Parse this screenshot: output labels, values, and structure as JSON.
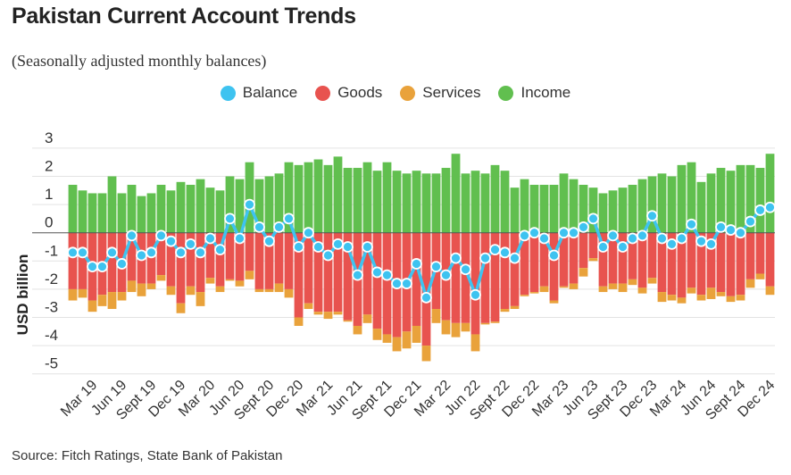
{
  "chart_data": {
    "type": "bar",
    "stacked": true,
    "title": "Pakistan Current Account Trends",
    "subtitle": "(Seasonally adjusted monthly balances)",
    "ylabel": "USD billion",
    "xlabel": "",
    "ylim": [
      -5,
      3
    ],
    "y_ticks": [
      "3",
      "2",
      "1",
      "0",
      "-1",
      "-2",
      "-3",
      "-4",
      "-5"
    ],
    "x_tick_labels": [
      "Mar 19",
      "Jun 19",
      "Sept 19",
      "Dec 19",
      "Mar 20",
      "Jun 20",
      "Sept 20",
      "Dec 20",
      "Mar 21",
      "Jun 21",
      "Sept 21",
      "Dec 21",
      "Mar 22",
      "Jun 22",
      "Sept 22",
      "Dec 22",
      "Mar 23",
      "Jun 23",
      "Sept 23",
      "Dec 23",
      "Mar 24",
      "Jun 24",
      "Sept 24",
      "Dec 24"
    ],
    "grid": true,
    "legend_placement": "top-center",
    "series": [
      {
        "name": "Balance",
        "type": "line",
        "color": "#3ec3f0",
        "values": [
          -0.7,
          -0.7,
          -1.2,
          -1.2,
          -0.7,
          -1.1,
          -0.1,
          -0.8,
          -0.7,
          -0.1,
          -0.3,
          -0.7,
          -0.4,
          -0.7,
          -0.2,
          -0.6,
          0.5,
          -0.2,
          1.0,
          0.2,
          -0.3,
          0.2,
          0.5,
          -0.5,
          0.0,
          -0.5,
          -0.8,
          -0.4,
          -0.5,
          -1.5,
          -0.5,
          -1.4,
          -1.5,
          -1.8,
          -1.8,
          -1.1,
          -2.3,
          -1.2,
          -1.5,
          -0.9,
          -1.3,
          -2.2,
          -0.9,
          -0.6,
          -0.7,
          -0.9,
          -0.1,
          0.0,
          -0.2,
          -0.8,
          0.0,
          0.0,
          0.2,
          0.5,
          -0.5,
          -0.1,
          -0.5,
          -0.2,
          -0.1,
          0.6,
          -0.2,
          -0.4,
          -0.2,
          0.3,
          -0.3,
          -0.4,
          0.2,
          0.1,
          0.0,
          0.4,
          0.8,
          0.9
        ]
      },
      {
        "name": "Goods",
        "type": "bar",
        "color": "#e8534f",
        "values": [
          -2.0,
          -2.0,
          -2.4,
          -2.2,
          -2.1,
          -2.1,
          -1.7,
          -1.8,
          -1.8,
          -1.5,
          -1.9,
          -2.5,
          -1.9,
          -2.1,
          -1.6,
          -1.9,
          -1.65,
          -1.7,
          -1.35,
          -2.0,
          -2.0,
          -1.8,
          -2.0,
          -3.0,
          -2.5,
          -2.8,
          -2.8,
          -2.8,
          -3.1,
          -3.3,
          -2.9,
          -3.4,
          -3.6,
          -3.7,
          -3.5,
          -3.3,
          -4.0,
          -2.7,
          -3.1,
          -3.2,
          -3.2,
          -3.6,
          -3.2,
          -3.15,
          -2.7,
          -2.6,
          -2.2,
          -2.1,
          -1.9,
          -2.4,
          -1.9,
          -1.8,
          -1.25,
          -0.9,
          -1.9,
          -1.8,
          -1.8,
          -1.65,
          -1.95,
          -1.6,
          -2.1,
          -2.2,
          -2.3,
          -1.95,
          -2.2,
          -1.95,
          -2.1,
          -2.25,
          -2.2,
          -1.65,
          -1.45,
          -1.9
        ]
      },
      {
        "name": "Services",
        "type": "bar",
        "color": "#e9a23b",
        "values": [
          -0.4,
          -0.3,
          -0.4,
          -0.4,
          -0.6,
          -0.3,
          -0.4,
          -0.45,
          -0.2,
          -0.2,
          -0.3,
          -0.35,
          -0.3,
          -0.5,
          -0.2,
          -0.2,
          -0.05,
          -0.2,
          -0.3,
          -0.1,
          -0.1,
          -0.3,
          -0.3,
          -0.3,
          -0.2,
          -0.1,
          -0.25,
          -0.1,
          -0.05,
          -0.3,
          -0.3,
          -0.4,
          -0.3,
          -0.5,
          -0.6,
          -0.6,
          -0.55,
          -0.5,
          -0.5,
          -0.5,
          -0.3,
          -0.6,
          -0.05,
          -0.05,
          -0.1,
          -0.1,
          -0.05,
          -0.05,
          -0.2,
          -0.1,
          -0.05,
          -0.2,
          -0.3,
          -0.1,
          -0.2,
          -0.2,
          -0.3,
          -0.2,
          -0.2,
          -0.2,
          -0.35,
          -0.2,
          -0.2,
          -0.2,
          -0.2,
          -0.4,
          -0.15,
          -0.2,
          -0.2,
          -0.3,
          -0.2,
          -0.3
        ]
      },
      {
        "name": "Income",
        "type": "bar",
        "color": "#61bf4f",
        "values": [
          1.7,
          1.5,
          1.4,
          1.4,
          2.0,
          1.4,
          1.7,
          1.3,
          1.4,
          1.7,
          1.5,
          1.8,
          1.7,
          1.9,
          1.6,
          1.5,
          2.0,
          1.9,
          2.5,
          1.9,
          2.0,
          2.1,
          2.5,
          2.4,
          2.5,
          2.6,
          2.4,
          2.7,
          2.3,
          2.3,
          2.5,
          2.2,
          2.5,
          2.2,
          2.1,
          2.2,
          2.1,
          2.1,
          2.3,
          2.8,
          2.1,
          2.2,
          2.1,
          2.4,
          2.2,
          1.6,
          1.9,
          1.7,
          1.7,
          1.7,
          2.1,
          1.9,
          1.7,
          1.6,
          1.4,
          1.5,
          1.6,
          1.7,
          1.9,
          2.0,
          2.1,
          2.0,
          2.4,
          2.5,
          1.8,
          2.1,
          2.3,
          2.2,
          2.4,
          2.4,
          2.3,
          2.8
        ]
      }
    ]
  },
  "legend": {
    "balance": "Balance",
    "goods": "Goods",
    "services": "Services",
    "income": "Income"
  },
  "source": "Source: Fitch Ratings, State Bank of Pakistan"
}
